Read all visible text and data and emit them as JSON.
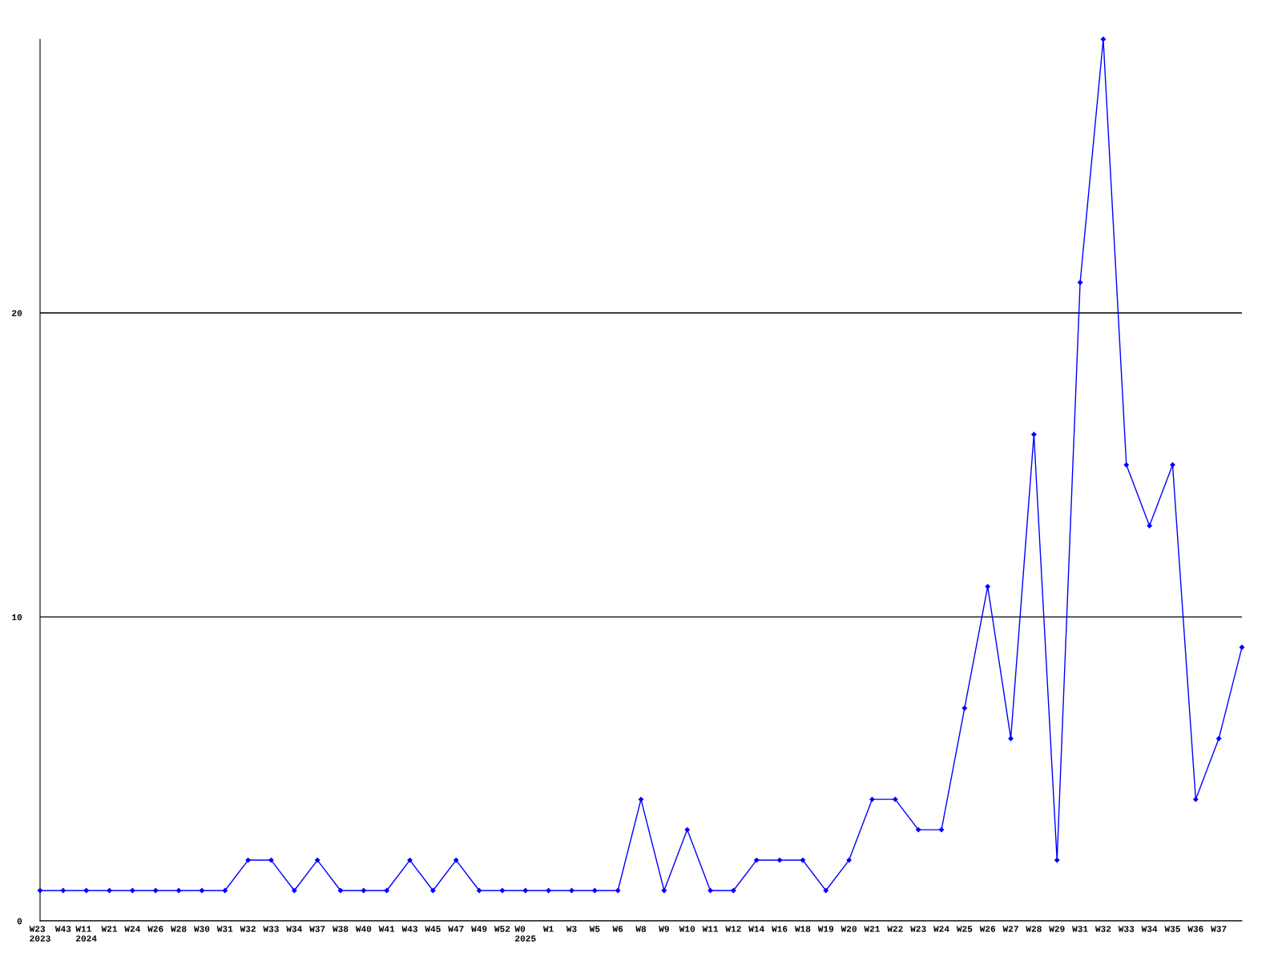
{
  "chart_data": {
    "type": "line",
    "categories": [
      "W23\n2023",
      "W43",
      "W11\n2024",
      "W21",
      "W24",
      "W26",
      "W28",
      "W30",
      "W31",
      "W32",
      "W33",
      "W34",
      "W37",
      "W38",
      "W40",
      "W41",
      "W43",
      "W45",
      "W47",
      "W49",
      "W52",
      "W0\n2025",
      "W1",
      "W3",
      "W5",
      "W6",
      "W8",
      "W9",
      "W10",
      "W11",
      "W12",
      "W14",
      "W16",
      "W18",
      "W19",
      "W20",
      "W21",
      "W22",
      "W23",
      "W24",
      "W25",
      "W26",
      "W27",
      "W28",
      "W29",
      "W31",
      "W32",
      "W33",
      "W34",
      "W35",
      "W36",
      "W37",
      null
    ],
    "series": [
      {
        "color": "#0000ff",
        "values": [
          1,
          1,
          1,
          1,
          1,
          1,
          1,
          1,
          1,
          2,
          2,
          1,
          2,
          1,
          1,
          1,
          2,
          1,
          2,
          1,
          1,
          1,
          1,
          1,
          1,
          1,
          4,
          1,
          3,
          1,
          1,
          2,
          2,
          2,
          1,
          2,
          4,
          4,
          3,
          3,
          7,
          11,
          6,
          16,
          2,
          21,
          29,
          15,
          13,
          15,
          4,
          6,
          9
        ]
      }
    ],
    "ylim": [
      0,
      29
    ],
    "yticks": [
      0,
      10,
      20
    ],
    "grid": "y",
    "marker": "diamond",
    "line_style": "solid",
    "legend": false
  }
}
